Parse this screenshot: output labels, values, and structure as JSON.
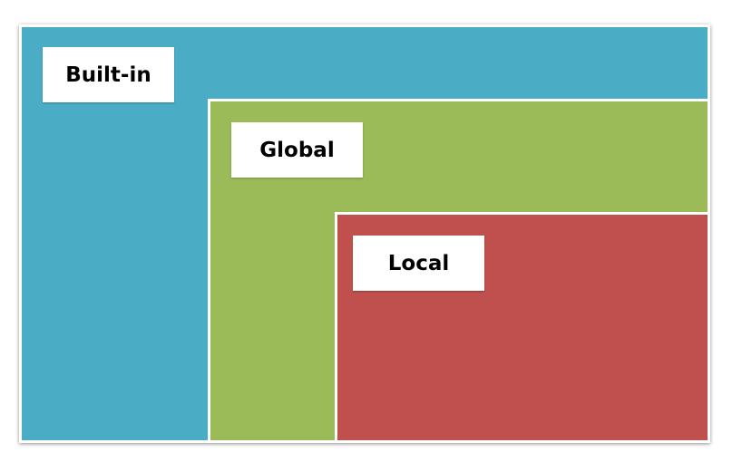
{
  "scopes": {
    "builtin": {
      "label": "Built-in",
      "color": "#4BACC6"
    },
    "global": {
      "label": "Global",
      "color": "#9BBB59"
    },
    "local": {
      "label": "Local",
      "color": "#C0504D"
    }
  }
}
